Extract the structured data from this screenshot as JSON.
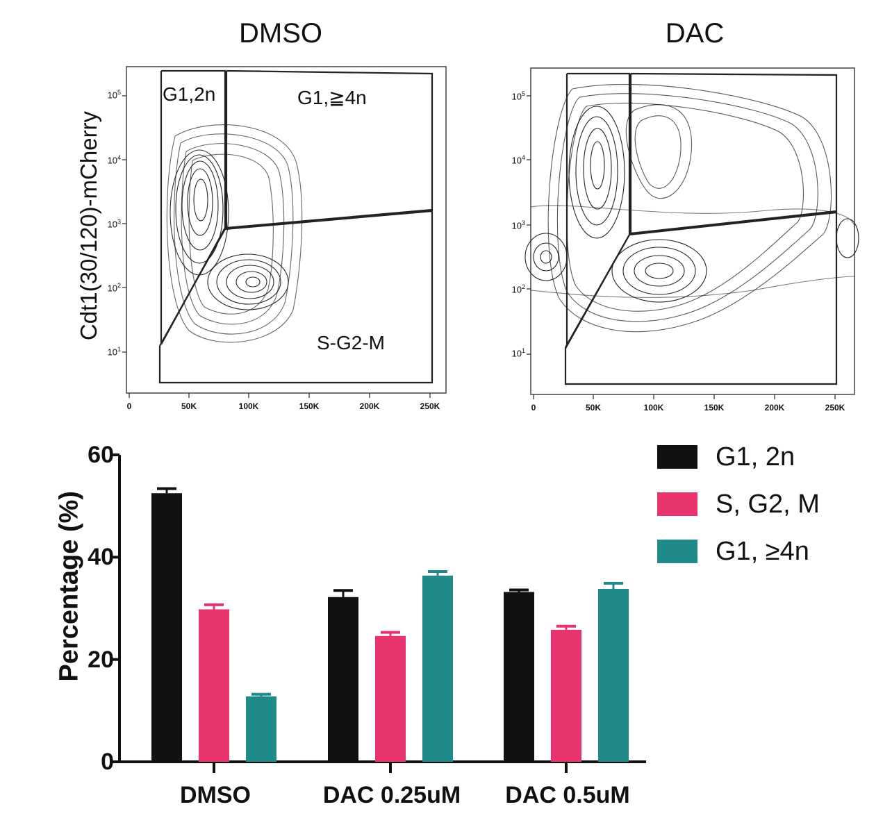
{
  "flow_panels": [
    {
      "title": "DMSO",
      "ylabel": "Cdt1(30/120)-mCherry",
      "x_ticks": [
        "0",
        "50K",
        "100K",
        "150K",
        "200K",
        "250K"
      ],
      "y_ticks": [
        "10",
        "10",
        "10",
        "10",
        "10"
      ],
      "y_exponents": [
        "1",
        "2",
        "3",
        "4",
        "5"
      ],
      "gates": {
        "g1_2n": "G1,2n",
        "g1_4n": "G1,≧4n",
        "sg2m": "S-G2-M"
      }
    },
    {
      "title": "DAC",
      "x_ticks": [
        "0",
        "50K",
        "100K",
        "150K",
        "200K",
        "250K"
      ],
      "y_ticks": [
        "10",
        "10",
        "10",
        "10",
        "10"
      ],
      "y_exponents": [
        "1",
        "2",
        "3",
        "4",
        "5"
      ]
    }
  ],
  "chart_data": {
    "type": "bar",
    "categories": [
      "DMSO",
      "DAC 0.25uM",
      "DAC 0.5uM"
    ],
    "series": [
      {
        "name": "G1, 2n",
        "color": "#111111",
        "values": [
          52.5,
          32.2,
          33.2
        ],
        "errors": [
          0.9,
          1.3,
          0.4
        ]
      },
      {
        "name": "S, G2, M",
        "color": "#e8336d",
        "values": [
          29.8,
          24.6,
          25.8
        ],
        "errors": [
          0.9,
          0.7,
          0.7
        ]
      },
      {
        "name": "G1, ≥4n",
        "color": "#1f8a8a",
        "values": [
          12.8,
          36.4,
          33.8
        ],
        "errors": [
          0.4,
          0.8,
          1.1
        ]
      }
    ],
    "ylabel": "Percentage (%)",
    "ylim": [
      0,
      60
    ],
    "yticks": [
      "0",
      "20",
      "40",
      "60"
    ],
    "legend": "right"
  }
}
